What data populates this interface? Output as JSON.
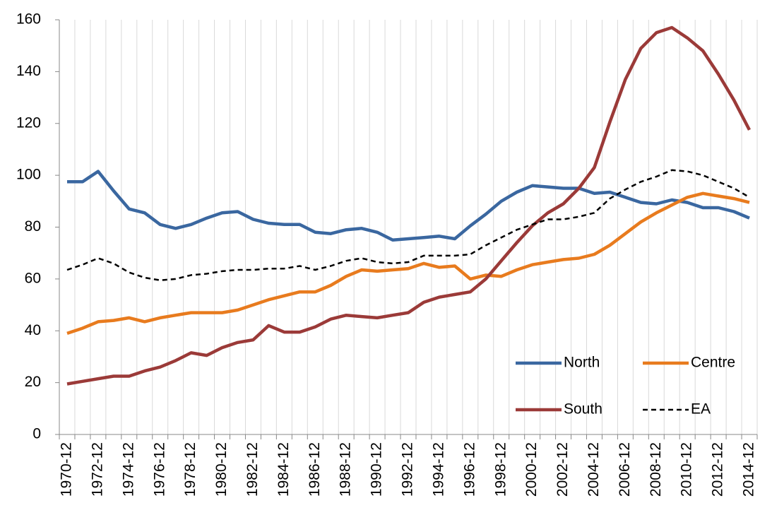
{
  "chart_data": {
    "type": "line",
    "categories": [
      "1970-12",
      null,
      "1972-12",
      null,
      "1974-12",
      null,
      "1976-12",
      null,
      "1978-12",
      null,
      "1980-12",
      null,
      "1982-12",
      null,
      "1984-12",
      null,
      "1986-12",
      null,
      "1988-12",
      null,
      "1990-12",
      null,
      "1992-12",
      null,
      "1994-12",
      null,
      "1996-12",
      null,
      "1998-12",
      null,
      "2000-12",
      null,
      "2002-12",
      null,
      "2004-12",
      null,
      "2006-12",
      null,
      "2008-12",
      null,
      "2010-12",
      null,
      "2012-12",
      null,
      "2014-12"
    ],
    "series": [
      {
        "name": "North",
        "color": "#3a67a0",
        "dashed": false,
        "values": [
          97.5,
          97.5,
          101.5,
          94,
          87,
          85.5,
          81,
          79.5,
          81,
          83.5,
          85.5,
          86,
          83,
          81.5,
          81,
          81,
          78,
          77.5,
          79,
          79.5,
          78,
          75,
          75.5,
          76,
          76.5,
          75.5,
          80.5,
          85,
          90,
          93.5,
          96,
          95.5,
          95,
          95,
          93,
          93.5,
          91.5,
          89.5,
          89,
          90.5,
          89.5,
          87.5,
          87.5,
          86,
          83.5
        ]
      },
      {
        "name": "Centre",
        "color": "#e87b1e",
        "dashed": false,
        "values": [
          39,
          41,
          43.5,
          44,
          45,
          43.5,
          45,
          46,
          47,
          47,
          47,
          48,
          50,
          52,
          53.5,
          55,
          55,
          57.5,
          61,
          63.5,
          63,
          63.5,
          64,
          66,
          64.5,
          65,
          60,
          61.5,
          61,
          63.5,
          65.5,
          66.5,
          67.5,
          68,
          69.5,
          73,
          77.5,
          82,
          85.5,
          88.5,
          91.5,
          93,
          92,
          91,
          89.5
        ]
      },
      {
        "name": "South",
        "color": "#9b3a38",
        "dashed": false,
        "values": [
          19.5,
          20.5,
          21.5,
          22.5,
          22.5,
          24.5,
          26,
          28.5,
          31.5,
          30.5,
          33.5,
          35.5,
          36.5,
          42,
          39.5,
          39.5,
          41.5,
          44.5,
          46,
          45.5,
          45,
          46,
          47,
          51,
          53,
          54,
          55,
          60,
          67,
          74,
          80.5,
          85.5,
          89,
          95,
          103,
          120.5,
          137,
          149,
          155,
          157,
          153,
          148,
          139,
          129,
          117.5
        ]
      },
      {
        "name": "EA",
        "color": "#000000",
        "dashed": true,
        "values": [
          63.5,
          65.5,
          68,
          66,
          62.5,
          60.5,
          59.5,
          60,
          61.5,
          62,
          63,
          63.5,
          63.5,
          64,
          64,
          65,
          63.5,
          65,
          67,
          68,
          66.5,
          66,
          66.5,
          69,
          69,
          69,
          69.5,
          73,
          76,
          79,
          81,
          83,
          83,
          84,
          85.5,
          91,
          94.5,
          97.5,
          99.5,
          102,
          101.5,
          100,
          97.5,
          95,
          91.5
        ]
      }
    ],
    "ylim": [
      0,
      160
    ],
    "yticks": [
      0,
      20,
      40,
      60,
      80,
      100,
      120,
      140,
      160
    ],
    "grid": "vertical",
    "legend": "bottom-right"
  }
}
